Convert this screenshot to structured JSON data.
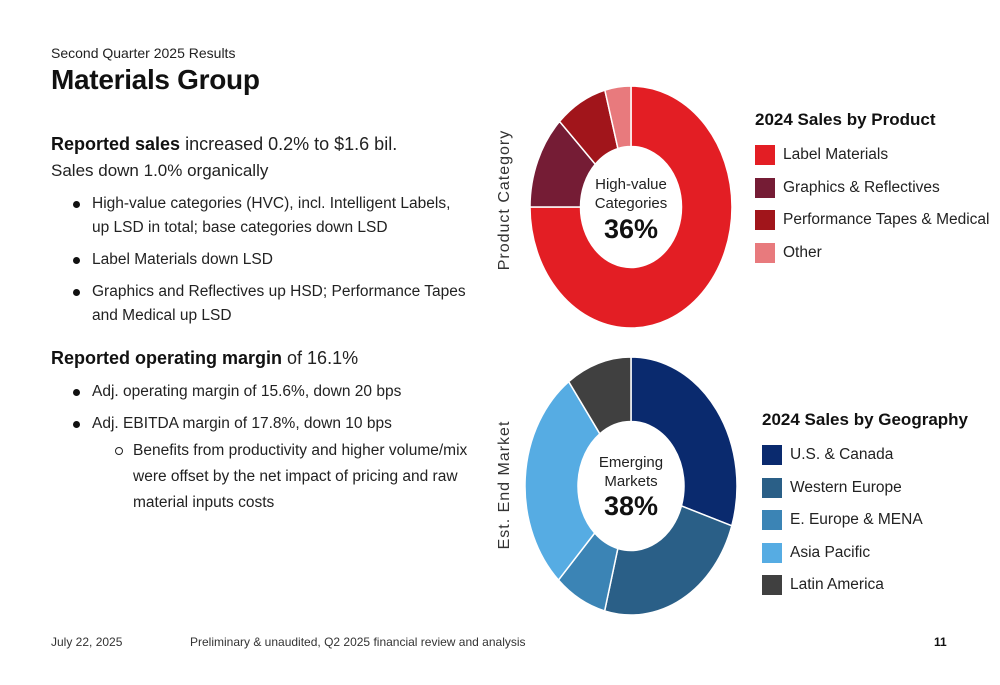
{
  "header": {
    "subtitle": "Second Quarter 2025 Results",
    "title": "Materials Group"
  },
  "summary": {
    "sales_bold": "Reported sales",
    "sales_rest": " increased 0.2% to $1.6 bil.",
    "organic": "Sales down 1.0% organically",
    "sales_bullets": [
      "High-value categories (HVC), incl. Intelligent Labels, up LSD in total; base categories down LSD",
      "Label Materials down LSD",
      "Graphics and Reflectives up HSD; Performance Tapes and Medical up LSD"
    ],
    "margin_bold": "Reported operating margin",
    "margin_rest": " of 16.1%",
    "margin_bullets": [
      "Adj. operating margin of 15.6%, down 20 bps",
      "Adj. EBITDA margin of 17.8%, down 10 bps"
    ],
    "margin_sub": "Benefits from productivity and higher volume/mix were offset by the net impact of pricing and raw material inputs costs"
  },
  "chart_data": [
    {
      "type": "pie",
      "side_label": "Product Category",
      "title": "2024 Sales by Product",
      "center_label_line1": "High-value",
      "center_label_line2": "Categories",
      "center_value": "36%",
      "categories": [
        "Label Materials",
        "Graphics & Reflectives",
        "Performance Tapes & Medical",
        "Other"
      ],
      "values": [
        72,
        12,
        8,
        4
      ],
      "colors": [
        "#e31e24",
        "#751c35",
        "#a1151b",
        "#e87a7d"
      ]
    },
    {
      "type": "pie",
      "side_label": "Est. End Market",
      "title": "2024 Sales by Geography",
      "center_label_line1": "Emerging",
      "center_label_line2": "Markets",
      "center_value": "38%",
      "categories": [
        "U.S. & Canada",
        "Western Europe",
        "E. Europe & MENA",
        "Asia Pacific",
        "Latin America"
      ],
      "values": [
        30,
        24,
        8,
        28,
        10
      ],
      "colors": [
        "#0a2a6e",
        "#2a5f87",
        "#3b84b5",
        "#56ace3",
        "#404040"
      ]
    }
  ],
  "footer": {
    "date": "July 22, 2025",
    "note": "Preliminary & unaudited, Q2 2025 financial review and analysis",
    "page": "11"
  }
}
